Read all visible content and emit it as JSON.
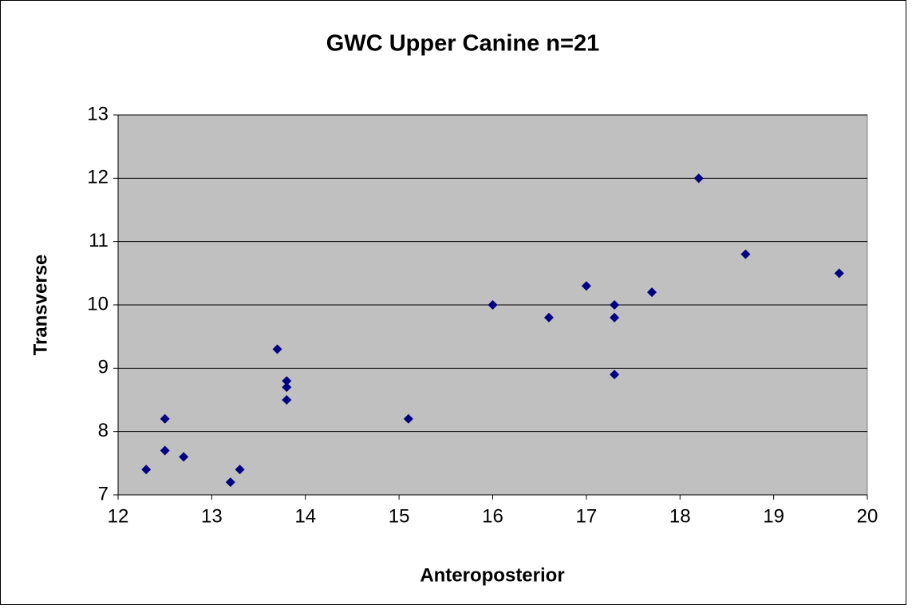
{
  "chart_data": {
    "type": "scatter",
    "title": "GWC Upper Canine n=21",
    "x_label": "Anteroposterior",
    "y_label": "Transverse",
    "series": [
      {
        "color": "#000080",
        "x": [
          12.3,
          12.5,
          12.5,
          12.7,
          13.2,
          13.3,
          13.7,
          13.8,
          13.8,
          13.8,
          15.1,
          16.0,
          16.6,
          17.0,
          17.3,
          17.3,
          17.3,
          17.7,
          18.2,
          18.7,
          19.7
        ],
        "values": [
          7.4,
          8.2,
          7.7,
          7.6,
          7.2,
          7.4,
          9.3,
          8.8,
          8.7,
          8.5,
          8.2,
          10.0,
          9.8,
          10.3,
          10.0,
          9.8,
          8.9,
          10.2,
          12.0,
          10.8,
          10.5
        ]
      }
    ],
    "xlim": [
      12,
      20
    ],
    "xticks": [
      12,
      13,
      14,
      15,
      16,
      17,
      18,
      19,
      20
    ],
    "ylim": [
      7,
      13
    ],
    "yticks": [
      7,
      8,
      9,
      10,
      11,
      12,
      13
    ],
    "grid": true
  }
}
